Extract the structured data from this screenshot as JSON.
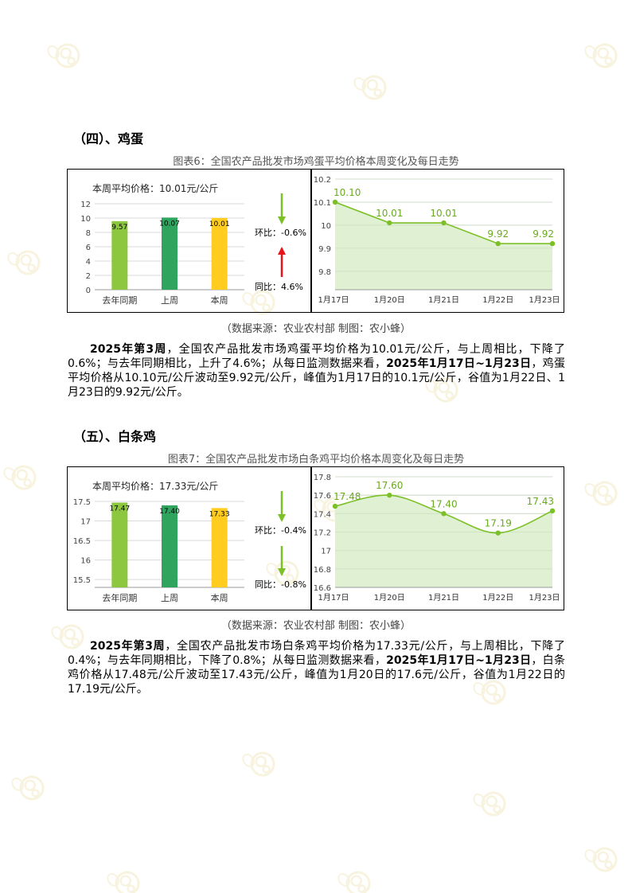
{
  "sections": [
    {
      "title": "（四）、鸡蛋",
      "caption": "图表6：全国农产品批发市场鸡蛋平均价格本周变化及每日走势",
      "weekly": {
        "avg_label": "本周平均价格：10.01元/公斤",
        "hb_label": "环比：",
        "hb_value": "-0.6%",
        "hb_direction": "down",
        "tb_label": "同比：",
        "tb_value": "4.6%",
        "tb_direction": "up"
      },
      "source": "（数据来源：农业农村部    制图：农小蜂）",
      "paragraph": {
        "b1": "2025年第3周",
        "t1": "，全国农产品批发市场鸡蛋平均价格为10.01元/公斤，与上周相比，下降了0.6%；与去年同期相比，上升了4.6%；从每日监测数据来看，",
        "b2": "2025年1月17日~1月23日",
        "t2": "，鸡蛋平均价格从10.10元/公斤波动至9.92元/公斤，峰值为1月17日的10.1元/公斤，谷值为1月22日、1月23日的9.92元/公斤。"
      }
    },
    {
      "title": "（五）、白条鸡",
      "caption": "图表7：全国农产品批发市场白条鸡平均价格本周变化及每日走势",
      "weekly": {
        "avg_label": "本周平均价格：17.33元/公斤",
        "hb_label": "环比：",
        "hb_value": "-0.4%",
        "hb_direction": "down",
        "tb_label": "同比：",
        "tb_value": "-0.8%",
        "tb_direction": "down"
      },
      "source": "（数据来源：农业农村部    制图：农小蜂）",
      "paragraph": {
        "b1": "2025年第3周",
        "t1": "，全国农产品批发市场白条鸡平均价格为17.33元/公斤，与上周相比，下降了0.4%；与去年同期相比，下降了0.8%；从每日监测数据来看，",
        "b2": "2025年1月17日~1月23日",
        "t2": "，白条鸡价格从17.48元/公斤波动至17.43元/公斤，峰值为1月20日的17.6元/公斤，谷值为1月22日的17.19元/公斤。"
      }
    }
  ],
  "chart_data": [
    {
      "type": "bar",
      "categories": [
        "去年同期",
        "上周",
        "本周"
      ],
      "values": [
        9.57,
        10.07,
        10.01
      ],
      "labels": [
        "9.57",
        "10.07",
        "10.01"
      ],
      "ylim": [
        0,
        12
      ],
      "yticks": [
        "0",
        "2",
        "4",
        "6",
        "8",
        "10",
        "12"
      ],
      "colors": [
        "#8dc63f",
        "#2ea45f",
        "#ffcc1f"
      ]
    },
    {
      "type": "area",
      "categories": [
        "1月17日",
        "1月20日",
        "1月21日",
        "1月22日",
        "1月23日"
      ],
      "values": [
        10.1,
        10.01,
        10.01,
        9.92,
        9.92
      ],
      "labels": [
        "10.10",
        "10.01",
        "10.01",
        "9.92",
        "9.92"
      ],
      "ylim": [
        9.72,
        10.2
      ],
      "yticks": [
        "9.8",
        "9.9",
        "10",
        "10.1",
        "10.2"
      ],
      "smooth": false,
      "color": "#7cc027",
      "fill": "#dcefcd"
    },
    {
      "type": "bar",
      "categories": [
        "去年同期",
        "上周",
        "本周"
      ],
      "values": [
        17.47,
        17.4,
        17.33
      ],
      "labels": [
        "17.47",
        "17.40",
        "17.33"
      ],
      "ylim": [
        15.3,
        17.5
      ],
      "yticks": [
        "15.5",
        "16",
        "16.5",
        "17",
        "17.5"
      ],
      "colors": [
        "#8dc63f",
        "#2ea45f",
        "#ffcc1f"
      ]
    },
    {
      "type": "area",
      "categories": [
        "1月17日",
        "1月20日",
        "1月21日",
        "1月22日",
        "1月23日"
      ],
      "values": [
        17.48,
        17.6,
        17.4,
        17.19,
        17.43
      ],
      "labels": [
        "17.48",
        "17.60",
        "17.40",
        "17.19",
        "17.43"
      ],
      "ylim": [
        16.6,
        17.8
      ],
      "yticks": [
        "16.6",
        "16.8",
        "17",
        "17.2",
        "17.4",
        "17.6",
        "17.8"
      ],
      "smooth": true,
      "color": "#7cc027",
      "fill": "#dcefcd"
    }
  ]
}
